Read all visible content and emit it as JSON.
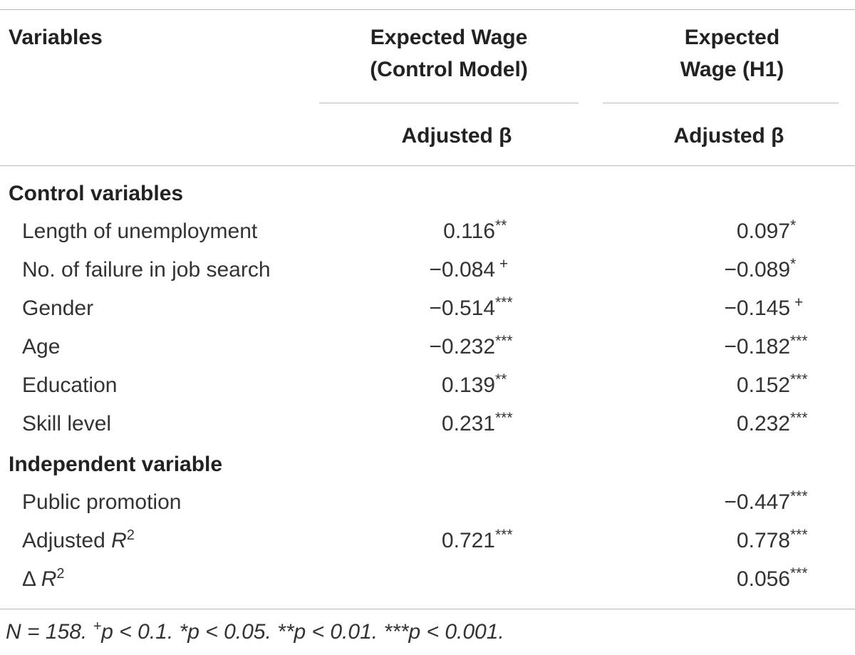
{
  "header": {
    "variables": "Variables",
    "col1_line1": "Expected Wage",
    "col1_line2": "(Control Model)",
    "col2_line1": "Expected",
    "col2_line2": "Wage (H1)",
    "sub1": "Adjusted β",
    "sub2": "Adjusted β"
  },
  "sections": {
    "control": "Control variables",
    "independent": "Independent variable"
  },
  "rows": [
    {
      "label": "Length of unemployment",
      "v1": "0.116",
      "s1": "**",
      "v2": "0.097",
      "s2": "*"
    },
    {
      "label": "No. of failure in job search",
      "v1": "−0.084",
      "s1": " +",
      "v2": "−0.089",
      "s2": "*"
    },
    {
      "label": "Gender",
      "v1": "−0.514",
      "s1": "***",
      "v2": "−0.145",
      "s2": " +"
    },
    {
      "label": "Age",
      "v1": "−0.232",
      "s1": "***",
      "v2": "−0.182",
      "s2": "***"
    },
    {
      "label": "Education",
      "v1": "0.139",
      "s1": "**",
      "v2": "0.152",
      "s2": "***"
    },
    {
      "label": "Skill level",
      "v1": "0.231",
      "s1": "***",
      "v2": "0.232",
      "s2": "***"
    },
    {
      "label": "Public promotion",
      "v1": "",
      "s1": "",
      "v2": "−0.447",
      "s2": "***"
    },
    {
      "label_prefix": "Adjusted ",
      "label_ital": "R",
      "label_sup": "2",
      "v1": "0.721",
      "s1": "***",
      "v2": "0.778",
      "s2": "***"
    },
    {
      "label_prefix": "Δ ",
      "label_ital": "R",
      "label_sup": "2",
      "v1": "",
      "s1": "",
      "v2": "0.056",
      "s2": "***"
    }
  ],
  "note": {
    "n": "N = 158. ",
    "plus_sym": "+",
    "p1": "p < 0.1. ",
    "star1": "*",
    "p2": "p < 0.05. ",
    "star2": "**",
    "p3": "p < 0.01. ",
    "star3": "***",
    "p4": "p < 0.001."
  }
}
